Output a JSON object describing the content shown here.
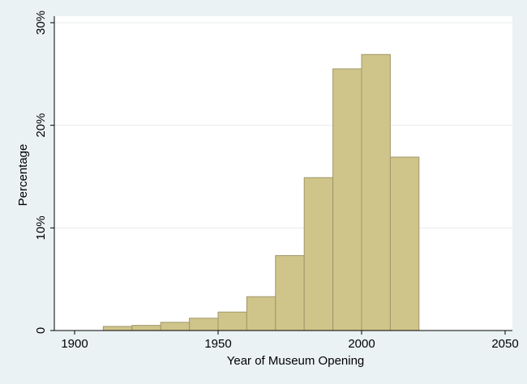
{
  "chart_data": {
    "type": "bar",
    "title": "",
    "xlabel": "Year of Museum Opening",
    "ylabel": "Percentage",
    "xlim": [
      1900,
      2050
    ],
    "ylim": [
      0,
      30
    ],
    "x_ticks": [
      {
        "value": 1900,
        "label": "1900"
      },
      {
        "value": 1950,
        "label": "1950"
      },
      {
        "value": 2000,
        "label": "2000"
      },
      {
        "value": 2050,
        "label": "2050"
      }
    ],
    "y_ticks": [
      {
        "value": 0,
        "label": "0"
      },
      {
        "value": 10,
        "label": "10%"
      },
      {
        "value": 20,
        "label": "20%"
      },
      {
        "value": 30,
        "label": "30%"
      }
    ],
    "grid": "horizontal",
    "bin_width": 10,
    "bins": [
      {
        "start": 1910,
        "value": 0.4
      },
      {
        "start": 1920,
        "value": 0.5
      },
      {
        "start": 1930,
        "value": 0.8
      },
      {
        "start": 1940,
        "value": 1.2
      },
      {
        "start": 1950,
        "value": 1.8
      },
      {
        "start": 1960,
        "value": 3.3
      },
      {
        "start": 1970,
        "value": 7.3
      },
      {
        "start": 1980,
        "value": 14.9
      },
      {
        "start": 1990,
        "value": 25.5
      },
      {
        "start": 2000,
        "value": 26.9
      },
      {
        "start": 2010,
        "value": 16.9
      }
    ],
    "colors": {
      "bar_fill": "#cfc58a",
      "bar_stroke": "#a0966a",
      "plot_bg": "#ffffff",
      "outer_bg": "#eaf2f3",
      "grid": "#e6ecec",
      "axis": "#000000"
    }
  }
}
